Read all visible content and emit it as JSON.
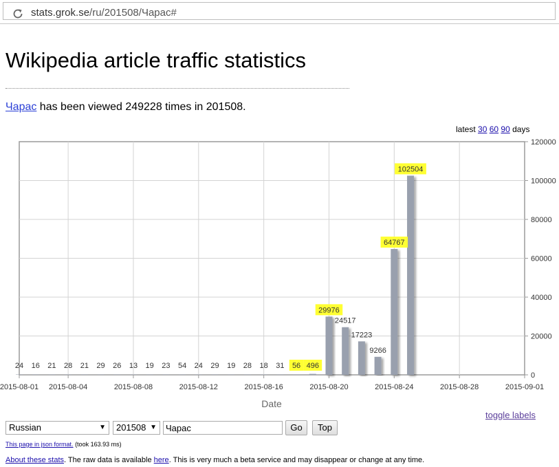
{
  "browser": {
    "url_host": "stats.grok.se",
    "url_path": "/ru/201508/Чарас#"
  },
  "page": {
    "title": "Wikipedia article traffic statistics",
    "summary": {
      "article_link": "Чарас",
      "text": " has been viewed 249228 times in 201508."
    },
    "latest": {
      "prefix": "latest ",
      "options": [
        "30",
        "60",
        "90"
      ],
      "suffix": " days"
    },
    "toggle_labels": "toggle labels",
    "controls": {
      "language": "Russian",
      "month": "201508",
      "article": "Чарас",
      "go_label": "Go",
      "top_label": "Top"
    },
    "json_line": {
      "link": "This page in json format.",
      "rest": " (took 163.93 ms)"
    },
    "about_line": {
      "link": "About these stats",
      "text1": ". The raw data is available ",
      "here": "here",
      "text2": ". This is very much a beta service and may disappear or change at any time."
    }
  },
  "colors": {
    "bar": "#99a0ae",
    "highlight": "#ffff33",
    "grid": "#d3d3d3",
    "link": "#1a0dab"
  },
  "chart_data": {
    "type": "bar",
    "xlabel": "Date",
    "ylim": [
      0,
      120000
    ],
    "yticks": [
      0,
      20000,
      40000,
      60000,
      80000,
      100000,
      120000
    ],
    "xticks": [
      "2015-08-01",
      "2015-08-04",
      "2015-08-08",
      "2015-08-12",
      "2015-08-16",
      "2015-08-20",
      "2015-08-24",
      "2015-08-28",
      "2015-09-01"
    ],
    "grid": true,
    "categories": [
      "2015-08-01",
      "2015-08-02",
      "2015-08-03",
      "2015-08-04",
      "2015-08-05",
      "2015-08-06",
      "2015-08-07",
      "2015-08-08",
      "2015-08-09",
      "2015-08-10",
      "2015-08-11",
      "2015-08-12",
      "2015-08-13",
      "2015-08-14",
      "2015-08-15",
      "2015-08-16",
      "2015-08-17",
      "2015-08-18",
      "2015-08-19",
      "2015-08-20",
      "2015-08-21",
      "2015-08-22",
      "2015-08-23",
      "2015-08-24",
      "2015-08-25"
    ],
    "values": [
      24,
      16,
      21,
      28,
      21,
      29,
      26,
      13,
      19,
      23,
      54,
      24,
      29,
      19,
      28,
      18,
      31,
      56,
      496,
      29976,
      24517,
      17223,
      9266,
      64767,
      102504
    ],
    "highlighted": [
      "2015-08-18",
      "2015-08-19",
      "2015-08-20",
      "2015-08-24",
      "2015-08-25"
    ]
  }
}
